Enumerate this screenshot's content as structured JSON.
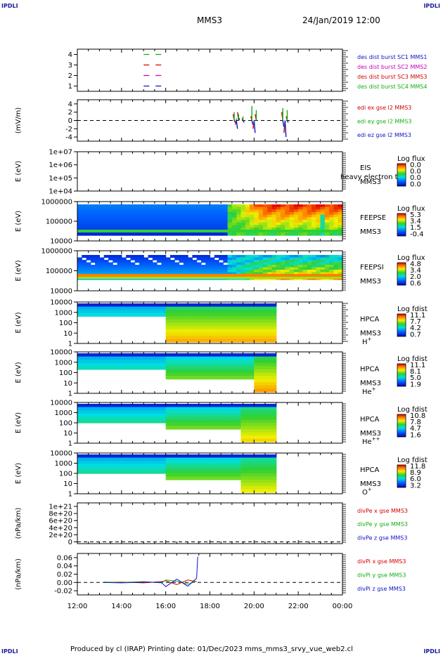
{
  "header": {
    "corner_tl": "IPDLI",
    "corner_tr": "IPDLI",
    "corner_bl": "IPDLI",
    "corner_br": "IPDLI",
    "title": "MMS3",
    "datetime": "24/Jan/2019 12:00"
  },
  "footer": {
    "text": "Produced by cl (IRAP)   Printing date: 01/Dec/2023   mms_mms3_srvy_vue_web2.cl"
  },
  "time_axis": {
    "ticks": [
      "12:00",
      "14:00",
      "16:00",
      "18:00",
      "20:00",
      "22:00",
      "00:00"
    ],
    "hours": [
      12,
      14,
      16,
      18,
      20,
      22,
      24
    ]
  },
  "colors": {
    "red": "#d40000",
    "green": "#10b010",
    "blue": "#1010c8",
    "magenta": "#c000c0",
    "axis": "#000000"
  },
  "chart_data": [
    {
      "type": "line",
      "panel": "des-dist-burst",
      "ylabel": "",
      "yticks": [
        "1",
        "2",
        "3",
        "4"
      ],
      "ylim": [
        0.5,
        4.5
      ],
      "legend": [
        {
          "text": "des dist burst SC1 MMS1",
          "color": "#1010c8"
        },
        {
          "text": "des dist burst SC2 MMS2",
          "color": "#c000c0"
        },
        {
          "text": "des dist burst SC3 MMS3",
          "color": "#d40000"
        },
        {
          "text": "des dist burst SC4 MMS4",
          "color": "#10b010"
        }
      ],
      "series": [
        {
          "name": "SC1",
          "level": 1,
          "x": [
            15.0,
            15.5,
            16.0
          ],
          "color": "#1010c8"
        },
        {
          "name": "SC2",
          "level": 2,
          "x": [
            15.0,
            15.5,
            16.0
          ],
          "color": "#c000c0"
        },
        {
          "name": "SC3",
          "level": 3,
          "x": [
            15.0,
            15.5,
            16.0
          ],
          "color": "#d40000"
        },
        {
          "name": "SC4",
          "level": 4,
          "x": [
            15.0,
            15.5,
            16.0
          ],
          "color": "#10b010"
        }
      ]
    },
    {
      "type": "line",
      "panel": "edi-e-gse",
      "ylabel": "(mV/m)",
      "yticks": [
        "-4",
        "-2",
        "0",
        "2",
        "4"
      ],
      "ylim": [
        -5,
        5
      ],
      "legend": [
        {
          "text": "edi ex gse l2 MMS3",
          "color": "#d40000"
        },
        {
          "text": "edi ey gse l2 MMS3",
          "color": "#10b010"
        },
        {
          "text": "edi ez gse l2 MMS3",
          "color": "#1010c8"
        }
      ],
      "series": [
        {
          "name": "edi ex gse l2 MMS3",
          "x": [
            19.1,
            19.2,
            19.3,
            19.5,
            19.9,
            20.0,
            20.1,
            21.3,
            21.4,
            21.5
          ],
          "y": [
            1.5,
            -1.0,
            2.0,
            0.5,
            1.0,
            -2.0,
            1.5,
            2.0,
            -3.0,
            1.0
          ]
        },
        {
          "name": "edi ey gse l2 MMS3",
          "x": [
            19.1,
            19.2,
            19.3,
            19.5,
            19.9,
            20.0,
            20.1,
            21.3,
            21.4,
            21.5
          ],
          "y": [
            2.0,
            0.5,
            1.5,
            1.0,
            3.5,
            -1.0,
            2.5,
            3.0,
            -2.0,
            2.5
          ]
        },
        {
          "name": "edi ez gse l2 MMS3",
          "x": [
            19.1,
            19.2,
            19.3,
            19.5,
            19.9,
            20.0,
            20.1,
            21.3,
            21.4,
            21.5
          ],
          "y": [
            -0.5,
            -2.0,
            0.5,
            -0.5,
            -1.0,
            -3.0,
            0.0,
            -1.5,
            -4.0,
            -0.5
          ]
        }
      ]
    },
    {
      "type": "heatmap",
      "panel": "eis",
      "ylabel": "E (eV)",
      "yticks": [
        "1e+04",
        "1e+05",
        "1e+06",
        "1e+07"
      ],
      "instrument": [
        "EIS",
        "MMS3"
      ],
      "overlay_text": "heavy electron to",
      "colorbar_title": "Log flux",
      "colorbar_ticks": [
        "0.0",
        "0.0",
        "0.0",
        "0.0"
      ],
      "time_range": [
        12,
        12
      ]
    },
    {
      "type": "heatmap",
      "panel": "feeps-electron",
      "ylabel": "E (eV)",
      "yticks": [
        "10000",
        "100000",
        "1000000"
      ],
      "instrument": [
        "FEEPSE",
        "MMS3"
      ],
      "colorbar_title": "Log flux",
      "colorbar_ticks": [
        "5.3",
        "3.4",
        "1.5",
        "-0.4"
      ],
      "time_range": [
        12,
        24
      ]
    },
    {
      "type": "heatmap",
      "panel": "feeps-ion",
      "ylabel": "E (eV)",
      "yticks": [
        "10000",
        "100000",
        "1000000"
      ],
      "instrument": [
        "FEEPSI",
        "MMS3"
      ],
      "colorbar_title": "Log flux",
      "colorbar_ticks": [
        "4.8",
        "3.4",
        "2.0",
        "0.6"
      ],
      "time_range": [
        12,
        24
      ]
    },
    {
      "type": "heatmap",
      "panel": "hpca-h",
      "ylabel": "E (eV)",
      "yticks": [
        "1",
        "10",
        "100",
        "1000",
        "10000"
      ],
      "instrument": [
        "HPCA",
        "MMS3"
      ],
      "species": "H",
      "species_sup": "+",
      "colorbar_title": "Log fdist",
      "colorbar_ticks": [
        "11.1",
        "7.7",
        "4.2",
        "0.7"
      ],
      "time_range": [
        12,
        21
      ]
    },
    {
      "type": "heatmap",
      "panel": "hpca-he",
      "ylabel": "E (eV)",
      "yticks": [
        "1",
        "10",
        "100",
        "1000",
        "10000"
      ],
      "instrument": [
        "HPCA",
        "MMS3"
      ],
      "species": "He",
      "species_sup": "+",
      "colorbar_title": "Log fdist",
      "colorbar_ticks": [
        "11.1",
        "8.1",
        "5.0",
        "1.9"
      ],
      "time_range": [
        12,
        21
      ]
    },
    {
      "type": "heatmap",
      "panel": "hpca-hepp",
      "ylabel": "E (eV)",
      "yticks": [
        "1",
        "10",
        "100",
        "1000",
        "10000"
      ],
      "instrument": [
        "HPCA",
        "MMS3"
      ],
      "species": "He",
      "species_sup": "++",
      "colorbar_title": "Log fdist",
      "colorbar_ticks": [
        "10.8",
        "7.8",
        "4.7",
        "1.6"
      ],
      "time_range": [
        12,
        21
      ]
    },
    {
      "type": "heatmap",
      "panel": "hpca-o",
      "ylabel": "E (eV)",
      "yticks": [
        "1",
        "10",
        "100",
        "1000",
        "10000"
      ],
      "instrument": [
        "HPCA",
        "MMS3"
      ],
      "species": "O",
      "species_sup": "+",
      "colorbar_title": "Log fdist",
      "colorbar_ticks": [
        "11.8",
        "8.9",
        "6.0",
        "3.2"
      ],
      "time_range": [
        12,
        21
      ]
    },
    {
      "type": "line",
      "panel": "divpe",
      "ylabel": "(nPa/km)",
      "yticks": [
        "0",
        "2e+20",
        "4e+20",
        "6e+20",
        "8e+20",
        "1e+21"
      ],
      "ylim": [
        -5e+19,
        1.1e+21
      ],
      "legend": [
        {
          "text": "divPe x gse MMS3",
          "color": "#d40000"
        },
        {
          "text": "divPe y gse MMS3",
          "color": "#10b010"
        },
        {
          "text": "divPe z gse MMS3",
          "color": "#1010c8"
        }
      ],
      "series": []
    },
    {
      "type": "line",
      "panel": "divpi",
      "ylabel": "(nPa/km)",
      "yticks": [
        "-0.02",
        "0.00",
        "0.02",
        "0.04",
        "0.06"
      ],
      "ylim": [
        -0.03,
        0.07
      ],
      "legend": [
        {
          "text": "divPi x gse MMS3",
          "color": "#d40000"
        },
        {
          "text": "divPi y gse MMS3",
          "color": "#10b010"
        },
        {
          "text": "divPi z gse MMS3",
          "color": "#1010c8"
        }
      ],
      "series": [
        {
          "name": "divPi x gse MMS3",
          "x": [
            13.2,
            14.0,
            15.0,
            15.8,
            16.0,
            16.5,
            17.0,
            17.4
          ],
          "y": [
            0.0,
            0.001,
            -0.001,
            0.002,
            0.004,
            -0.005,
            0.006,
            0.002
          ]
        },
        {
          "name": "divPi y gse MMS3",
          "x": [
            13.2,
            14.0,
            15.0,
            15.8,
            16.0,
            16.5,
            17.0,
            17.4
          ],
          "y": [
            0.001,
            0.0,
            0.002,
            -0.001,
            0.006,
            0.003,
            -0.004,
            0.003
          ]
        },
        {
          "name": "divPi z gse MMS3",
          "x": [
            13.2,
            14.0,
            15.0,
            15.8,
            16.0,
            16.5,
            17.0,
            17.4,
            17.45
          ],
          "y": [
            0.0,
            -0.001,
            0.001,
            0.0,
            -0.01,
            0.008,
            -0.009,
            0.01,
            0.062
          ]
        }
      ]
    }
  ]
}
